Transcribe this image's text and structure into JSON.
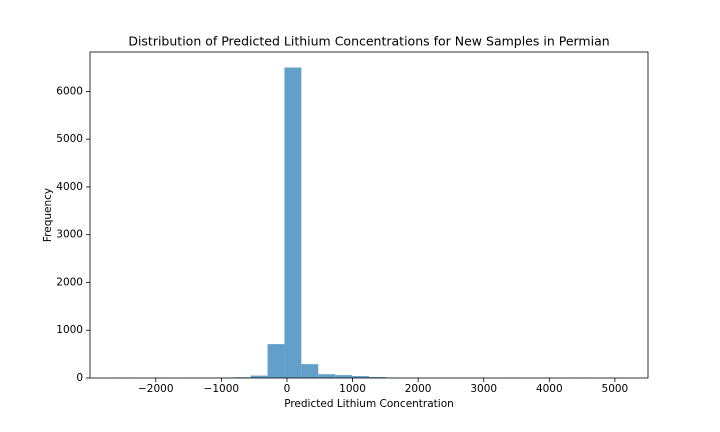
{
  "chart_data": {
    "type": "histogram",
    "title": "Distribution of Predicted Lithium Concentrations for New Samples in Permian",
    "x_label": "Predicted Lithium Concentration",
    "y_label": "Frequency",
    "bins": [
      -2616.0,
      -2358.2,
      -2100.4,
      -1842.6,
      -1584.8,
      -1327.0,
      -1069.2,
      -811.4,
      -553.6,
      -295.8,
      -38.0,
      219.8,
      477.6,
      735.4,
      993.2,
      1251.0,
      1508.8,
      1766.6,
      2024.4,
      2282.2,
      2540.0,
      2797.8,
      3055.6,
      3313.4,
      3571.2,
      3829.0,
      4086.8,
      4344.6,
      4602.4,
      4860.2,
      5118.0
    ],
    "values": [
      1,
      0,
      1,
      0,
      2,
      3,
      8,
      15,
      50,
      710,
      6500,
      290,
      80,
      60,
      40,
      20,
      8,
      5,
      3,
      2,
      1,
      1,
      0,
      1,
      0,
      0,
      0,
      1,
      0,
      1
    ],
    "color": "#62a0ca",
    "xlim": [
      -3002.7,
      5504.7
    ],
    "ylim": [
      0,
      6825
    ],
    "xticks": [
      {
        "value": -2000,
        "label": "−2000"
      },
      {
        "value": -1000,
        "label": "−1000"
      },
      0,
      1000,
      2000,
      3000,
      4000,
      5000
    ],
    "yticks": [
      0,
      1000,
      2000,
      3000,
      4000,
      5000,
      6000
    ]
  }
}
